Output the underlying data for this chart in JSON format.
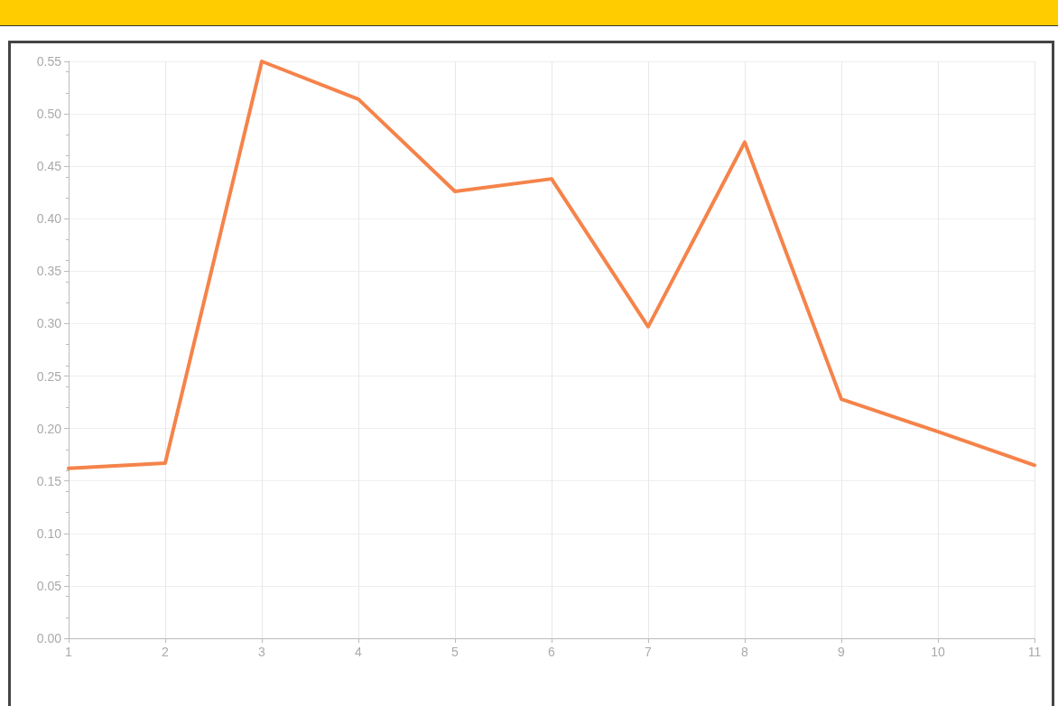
{
  "chart_data": {
    "type": "line",
    "x": [
      1,
      2,
      3,
      4,
      5,
      6,
      7,
      8,
      9,
      10,
      11
    ],
    "series": [
      {
        "color": "#f5834a",
        "values": [
          0.162,
          0.167,
          0.55,
          0.514,
          0.426,
          0.438,
          0.297,
          0.473,
          0.228,
          0.197,
          0.165
        ]
      }
    ],
    "xlim": [
      1,
      11
    ],
    "xticks": [
      1,
      2,
      3,
      4,
      5,
      6,
      7,
      8,
      9,
      10,
      11
    ],
    "ylim": [
      0,
      0.55
    ],
    "yticks": [
      {
        "value": 0,
        "label": "0.00"
      },
      {
        "value": 0.05,
        "label": "0.05"
      },
      {
        "value": 0.1,
        "label": "0.10"
      },
      {
        "value": 0.15,
        "label": "0.15"
      },
      {
        "value": 0.2,
        "label": "0.20"
      },
      {
        "value": 0.25,
        "label": "0.25"
      },
      {
        "value": 0.3,
        "label": "0.30"
      },
      {
        "value": 0.35,
        "label": "0.35"
      },
      {
        "value": 0.4,
        "label": "0.40"
      },
      {
        "value": 0.45,
        "label": "0.45"
      },
      {
        "value": 0.5,
        "label": "0.50"
      },
      {
        "value": 0.55,
        "label": "0.55"
      }
    ],
    "grid": true,
    "marker": "none",
    "line_style": "solid"
  }
}
